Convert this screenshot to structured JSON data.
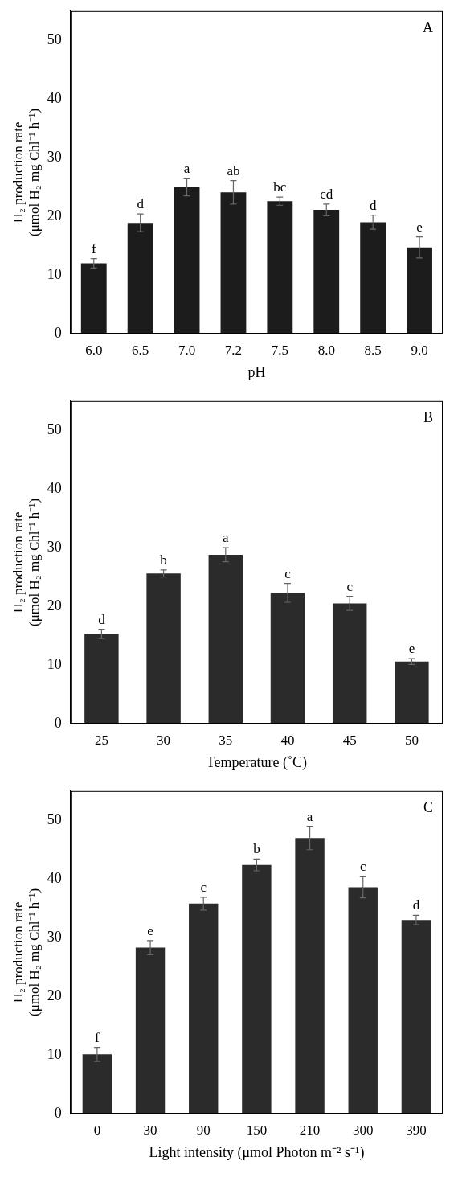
{
  "chart_data": [
    {
      "type": "bar",
      "panel_label": "A",
      "y_label": "H₂ production rate (μmol H₂ mg Chl⁻¹ h⁻¹)",
      "x_label": "pH",
      "categories": [
        "6.0",
        "6.5",
        "7.0",
        "7.2",
        "7.5",
        "8.0",
        "8.5",
        "9.0"
      ],
      "values": [
        12.0,
        18.9,
        25.0,
        24.1,
        22.6,
        21.1,
        19.0,
        14.7
      ],
      "error": [
        0.8,
        1.5,
        1.5,
        2.0,
        0.7,
        1.0,
        1.2,
        1.8
      ],
      "letters": [
        "f",
        "d",
        "a",
        "ab",
        "bc",
        "cd",
        "d",
        "e"
      ],
      "color": "#1c1c1c",
      "ylim": [
        0,
        55
      ],
      "yticks": [
        0,
        10,
        20,
        30,
        40,
        50
      ],
      "grid": false
    },
    {
      "type": "bar",
      "panel_label": "B",
      "y_label": "H₂ production rate (μmol H₂ mg Chl⁻¹ h⁻¹)",
      "x_label": "Temperature (˚C)",
      "categories": [
        "25",
        "30",
        "35",
        "40",
        "45",
        "50"
      ],
      "values": [
        15.3,
        25.6,
        28.8,
        22.3,
        20.5,
        10.6
      ],
      "error": [
        0.8,
        0.6,
        1.2,
        1.6,
        1.2,
        0.5
      ],
      "letters": [
        "d",
        "b",
        "a",
        "c",
        "c",
        "e"
      ],
      "color": "#2b2b2b",
      "ylim": [
        0,
        55
      ],
      "yticks": [
        0,
        10,
        20,
        30,
        40,
        50
      ],
      "grid": false
    },
    {
      "type": "bar",
      "panel_label": "C",
      "y_label": "H₂ production rate (μmol H₂ mg Chl⁻¹ h⁻¹)",
      "x_label": "Light intensity (μmol Photon m⁻² s⁻¹)",
      "categories": [
        "0",
        "30",
        "90",
        "150",
        "210",
        "300",
        "390"
      ],
      "values": [
        10.1,
        28.3,
        35.8,
        42.4,
        47.0,
        38.6,
        33.0
      ],
      "error": [
        1.2,
        1.2,
        1.1,
        1.0,
        2.0,
        1.8,
        0.8
      ],
      "letters": [
        "f",
        "e",
        "c",
        "b",
        "a",
        "c",
        "d"
      ],
      "color": "#2b2b2b",
      "ylim": [
        0,
        55
      ],
      "yticks": [
        0,
        10,
        20,
        30,
        40,
        50
      ],
      "grid": false
    }
  ]
}
